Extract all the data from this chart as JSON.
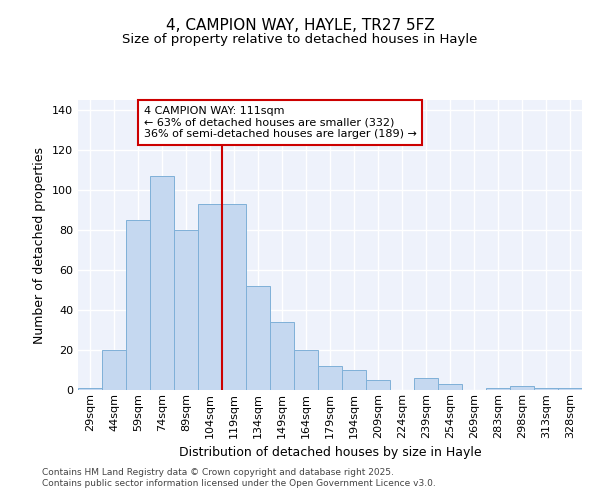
{
  "title_line1": "4, CAMPION WAY, HAYLE, TR27 5FZ",
  "title_line2": "Size of property relative to detached houses in Hayle",
  "xlabel": "Distribution of detached houses by size in Hayle",
  "ylabel": "Number of detached properties",
  "categories": [
    "29sqm",
    "44sqm",
    "59sqm",
    "74sqm",
    "89sqm",
    "104sqm",
    "119sqm",
    "134sqm",
    "149sqm",
    "164sqm",
    "179sqm",
    "194sqm",
    "209sqm",
    "224sqm",
    "239sqm",
    "254sqm",
    "269sqm",
    "283sqm",
    "298sqm",
    "313sqm",
    "328sqm"
  ],
  "values": [
    1,
    20,
    85,
    107,
    80,
    93,
    93,
    52,
    34,
    20,
    12,
    10,
    5,
    0,
    6,
    3,
    0,
    1,
    2,
    1,
    1
  ],
  "bar_color": "#c5d8f0",
  "bar_edge_color": "#7fb0d8",
  "vline_x": 5.5,
  "vline_color": "#cc0000",
  "annotation_text": "4 CAMPION WAY: 111sqm\n← 63% of detached houses are smaller (332)\n36% of semi-detached houses are larger (189) →",
  "annotation_box_color": "#cc0000",
  "ylim": [
    0,
    145
  ],
  "yticks": [
    0,
    20,
    40,
    60,
    80,
    100,
    120,
    140
  ],
  "background_color": "#eef2fb",
  "grid_color": "#ffffff",
  "footer": "Contains HM Land Registry data © Crown copyright and database right 2025.\nContains public sector information licensed under the Open Government Licence v3.0.",
  "title_fontsize": 11,
  "subtitle_fontsize": 9.5,
  "axis_label_fontsize": 9,
  "tick_fontsize": 8,
  "annotation_fontsize": 8
}
